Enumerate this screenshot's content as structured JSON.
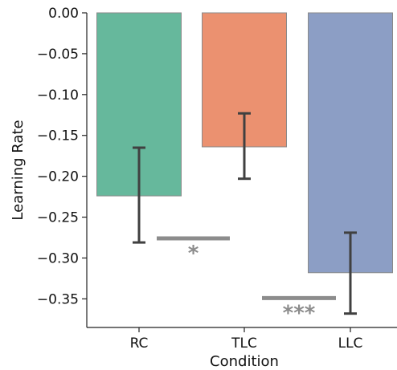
{
  "chart_data": {
    "type": "bar",
    "title": "",
    "xlabel": "Condition",
    "ylabel": "Learning Rate",
    "categories": [
      "RC",
      "TLC",
      "LLC"
    ],
    "values": [
      -0.224,
      -0.164,
      -0.318
    ],
    "error_bars": [
      {
        "low": -0.281,
        "high": -0.165
      },
      {
        "low": -0.203,
        "high": -0.123
      },
      {
        "low": -0.368,
        "high": -0.269
      }
    ],
    "colors": [
      "#66b89c",
      "#eb9170",
      "#8c9ec5"
    ],
    "ylim": [
      -0.385,
      0.0
    ],
    "yticks": [
      0.0,
      -0.05,
      -0.1,
      -0.15,
      -0.2,
      -0.25,
      -0.3,
      -0.35
    ],
    "ytick_labels": [
      "0.00",
      "−0.05",
      "−0.10",
      "−0.15",
      "−0.20",
      "−0.25",
      "−0.30",
      "−0.35"
    ],
    "grid": false,
    "significance": [
      {
        "between": [
          "RC",
          "TLC"
        ],
        "y": -0.276,
        "label": "*"
      },
      {
        "between": [
          "TLC",
          "LLC"
        ],
        "y": -0.349,
        "label": "***"
      }
    ],
    "significance_color": "#8c8c8c"
  }
}
